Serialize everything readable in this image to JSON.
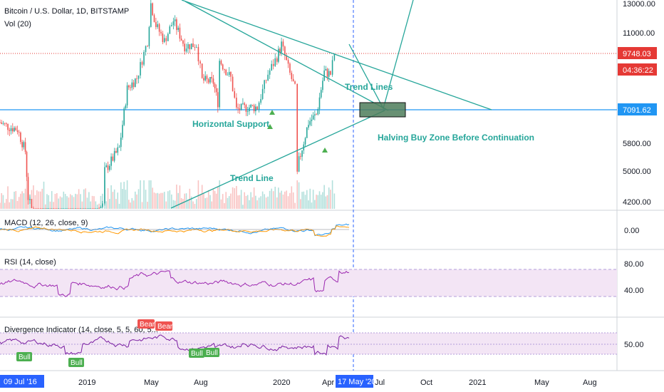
{
  "header": {
    "title": "Bitcoin / U.S. Dollar, 1D, BITSTAMP",
    "vol_label": "Vol (20)"
  },
  "colors": {
    "teal": "#26a69a",
    "candle_up": "#26a69a",
    "candle_down": "#ef5350",
    "price_line_red": "#e53935",
    "support_blue": "#2196f3",
    "purple": "#9c27b0",
    "rsi_band": "#f3e5f5",
    "buy_zone_fill": "#4e7d5b",
    "axis_blue": "#2962ff",
    "bull_green": "#4caf50",
    "bear_red": "#ef5350"
  },
  "price_axis": {
    "ticks": [
      "13000.00",
      "11000.00",
      "9748.03",
      "7091.62",
      "5800.00",
      "5000.00",
      "4200.00"
    ],
    "current_price": "9748.03",
    "countdown": "04:36:22",
    "support_price": "7091.62"
  },
  "annotations": {
    "trend_lines": "Trend Lines",
    "horizontal_support": "Horizontal Support",
    "halving_zone": "Halving Buy Zone Before Continuation",
    "trend_line": "Trend Line"
  },
  "macd": {
    "label": "MACD (12, 26, close, 9)",
    "tick": "0.00"
  },
  "rsi": {
    "label": "RSI (14, close)",
    "ticks": [
      "80.00",
      "40.00"
    ]
  },
  "divergence": {
    "label": "Divergence Indicator (14, close, 5, 5, 60, 5...",
    "tick": "50.00",
    "badges": [
      "Bull",
      "Bull",
      "Bear",
      "Bear",
      "Bull",
      "Bull"
    ]
  },
  "time_axis": {
    "start_label": "09 Jul '16",
    "current_label": "17 May '20",
    "ticks": [
      "2019",
      "May",
      "Aug",
      "2020",
      "Apr",
      "Jul",
      "Oct",
      "2021",
      "May",
      "Aug"
    ]
  },
  "chart_data": {
    "type": "candlestick",
    "title": "Bitcoin / U.S. Dollar, 1D, BITSTAMP",
    "y_scale": "log",
    "ylim": [
      3900,
      13500
    ],
    "x_range": [
      "2018-10",
      "2021-10"
    ],
    "close_path": [
      [
        "2018-10-01",
        6600
      ],
      [
        "2018-10-15",
        6450
      ],
      [
        "2018-11-01",
        6350
      ],
      [
        "2018-11-15",
        5600
      ],
      [
        "2018-11-20",
        4300
      ],
      [
        "2018-12-15",
        3300
      ],
      [
        "2019-01-01",
        3800
      ],
      [
        "2019-02-15",
        3650
      ],
      [
        "2019-04-01",
        4100
      ],
      [
        "2019-04-05",
        5000
      ],
      [
        "2019-05-01",
        5700
      ],
      [
        "2019-05-15",
        8000
      ],
      [
        "2019-06-01",
        8500
      ],
      [
        "2019-06-20",
        10500
      ],
      [
        "2019-06-26",
        13000
      ],
      [
        "2019-07-05",
        11500
      ],
      [
        "2019-07-20",
        10500
      ],
      [
        "2019-08-05",
        11800
      ],
      [
        "2019-08-25",
        10200
      ],
      [
        "2019-09-15",
        10300
      ],
      [
        "2019-09-25",
        8400
      ],
      [
        "2019-10-15",
        8300
      ],
      [
        "2019-10-23",
        7400
      ],
      [
        "2019-10-26",
        9400
      ],
      [
        "2019-11-15",
        8500
      ],
      [
        "2019-11-25",
        7100
      ],
      [
        "2019-12-15",
        7200
      ],
      [
        "2020-01-01",
        7200
      ],
      [
        "2020-01-20",
        8700
      ],
      [
        "2020-02-05",
        9600
      ],
      [
        "2020-02-13",
        10300
      ],
      [
        "2020-02-28",
        8700
      ],
      [
        "2020-03-08",
        8000
      ],
      [
        "2020-03-12",
        4900
      ],
      [
        "2020-03-15",
        5300
      ],
      [
        "2020-04-01",
        6600
      ],
      [
        "2020-04-15",
        6900
      ],
      [
        "2020-04-29",
        8800
      ],
      [
        "2020-05-10",
        8700
      ],
      [
        "2020-05-17",
        9748.03
      ]
    ],
    "horizontal_support": 7091.62,
    "current_price": 9748.03
  }
}
